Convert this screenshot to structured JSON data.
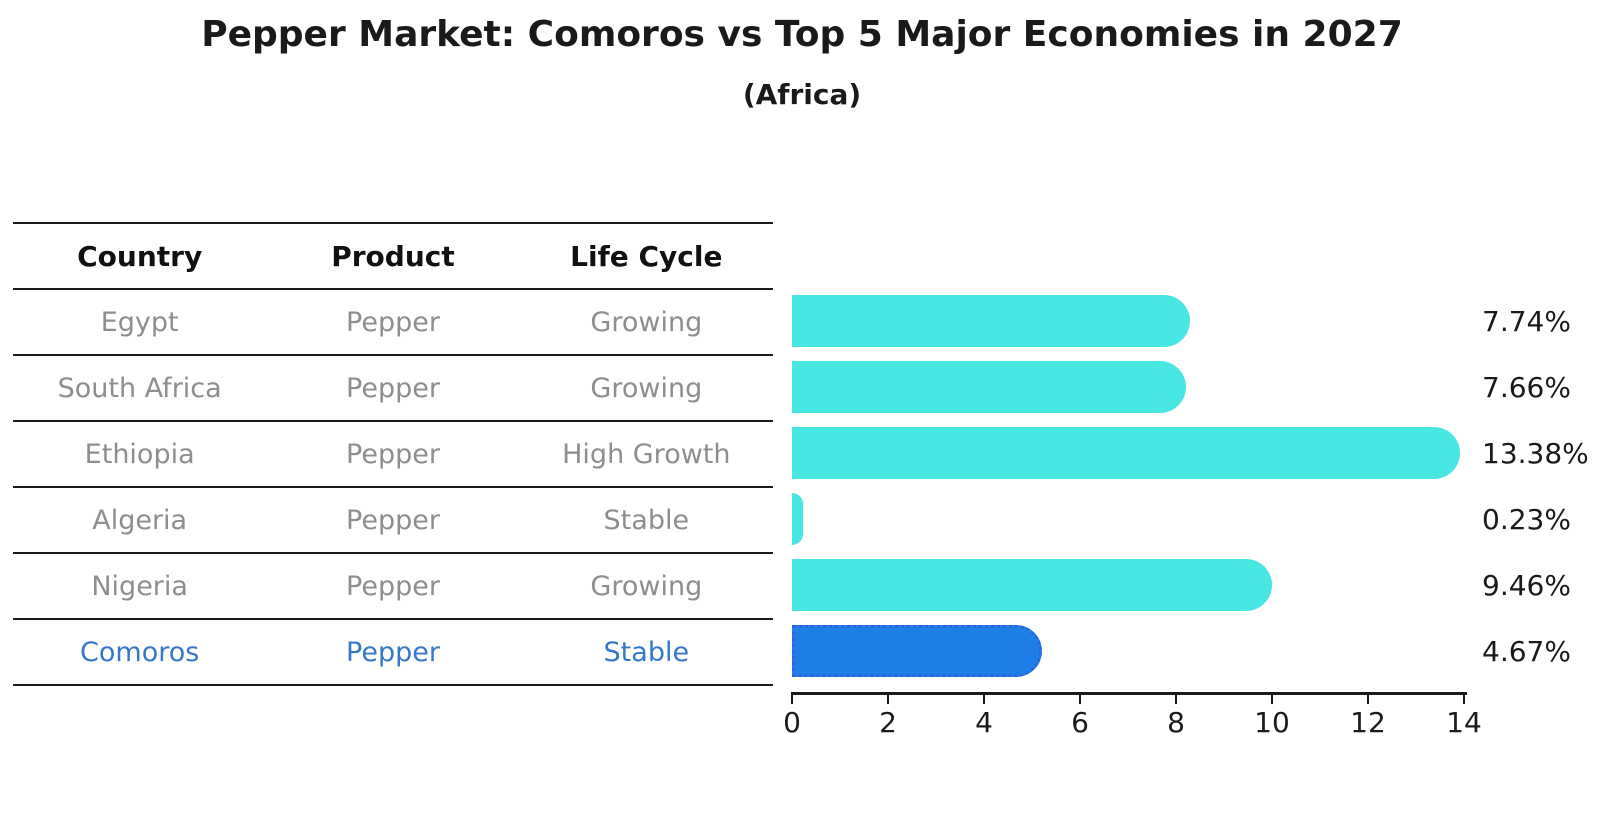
{
  "title": "Pepper Market: Comoros vs Top 5 Major Economies in 2027",
  "subtitle": "(Africa)",
  "table": {
    "headers": [
      "Country",
      "Product",
      "Life Cycle"
    ],
    "rows": [
      {
        "country": "Egypt",
        "product": "Pepper",
        "life_cycle": "Growing",
        "highlight": false
      },
      {
        "country": "South Africa",
        "product": "Pepper",
        "life_cycle": "Growing",
        "highlight": false
      },
      {
        "country": "Ethiopia",
        "product": "Pepper",
        "life_cycle": "High Growth",
        "highlight": false
      },
      {
        "country": "Algeria",
        "product": "Pepper",
        "life_cycle": "Stable",
        "highlight": false
      },
      {
        "country": "Nigeria",
        "product": "Pepper",
        "life_cycle": "Growing",
        "highlight": false
      },
      {
        "country": "Comoros",
        "product": "Pepper",
        "life_cycle": "Stable",
        "highlight": true
      }
    ]
  },
  "chart_data": {
    "type": "bar",
    "orientation": "horizontal",
    "title": "Pepper Market: Comoros vs Top 5 Major Economies in 2027",
    "subtitle": "(Africa)",
    "categories": [
      "Egypt",
      "South Africa",
      "Ethiopia",
      "Algeria",
      "Nigeria",
      "Comoros"
    ],
    "values": [
      7.74,
      7.66,
      13.38,
      0.23,
      9.46,
      4.67
    ],
    "value_labels": [
      "7.74%",
      "7.66%",
      "13.38%",
      "0.23%",
      "9.46%",
      "4.67%"
    ],
    "xlabel": "",
    "ylabel": "",
    "xlim": [
      0,
      14
    ],
    "xticks": [
      "0",
      "2",
      "4",
      "6",
      "8",
      "10",
      "12",
      "14"
    ],
    "grid": false,
    "legend": false,
    "bar_color": "#48e6e2",
    "highlight_index": 5,
    "highlight_bar_color": "#1e7fe8",
    "highlight_border_color": "#2b66d8",
    "highlight_text_color": "#3578c8",
    "text_color": "#1a1a1a",
    "row_text_color": "#8e8e8e"
  }
}
